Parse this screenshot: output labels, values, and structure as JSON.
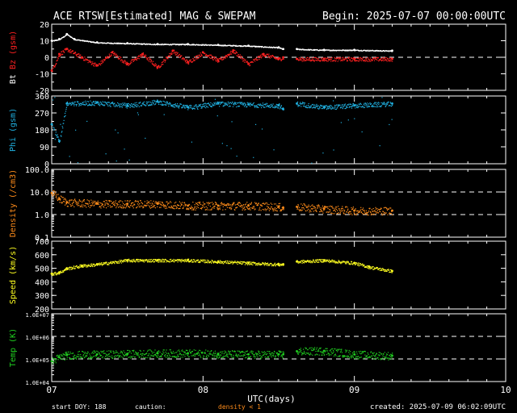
{
  "header": {
    "title": "ACE RTSW[Estimated] MAG & SWEPAM",
    "begin": "Begin: 2025-07-07 00:00:00UTC"
  },
  "footer": {
    "start_doy": "start DOY: 188",
    "caution": "caution:",
    "density_note": "density < 1",
    "created": "created: 2025-07-09 06:02:09UTC"
  },
  "colors": {
    "background": "#000000",
    "axes": "#ffffff",
    "bt": "#ffffff",
    "bz": "#ff2020",
    "phi": "#20b0e0",
    "density": "#ff8c1a",
    "speed": "#ffff20",
    "temp": "#20d020",
    "caution": "#ff8c1a"
  },
  "chart_data": {
    "type": "scatter",
    "xlabel": "UTC(days)",
    "x_range_days": [
      7,
      10
    ],
    "x_ticks": [
      7,
      8,
      9,
      10
    ],
    "x_tick_labels": [
      "07",
      "08",
      "09",
      "10"
    ],
    "data_end_day": 9.25,
    "gaps": [
      [
        8.53,
        8.62
      ]
    ],
    "panels": [
      {
        "id": "mag",
        "ylabel_parts": [
          {
            "text": "Bt",
            "color": "#ffffff"
          },
          {
            "text": "  ",
            "color": "#ffffff"
          },
          {
            "text": "Bz",
            "color": "#ff2020"
          },
          {
            "text": " (gsm)",
            "color": "#ff2020"
          }
        ],
        "scale": "linear",
        "ylim": [
          -20,
          20
        ],
        "ticks": [
          -20,
          -10,
          0,
          10,
          20
        ],
        "tick_labels": [
          "-20",
          "-10",
          "0",
          "10",
          "20"
        ],
        "dashed": [
          0
        ],
        "series": [
          {
            "name": "Bt",
            "color": "#ffffff",
            "x": [
              7.0,
              7.05,
              7.1,
              7.15,
              7.3,
              7.5,
              7.7,
              7.9,
              8.1,
              8.3,
              8.5,
              8.53,
              8.62,
              8.8,
              9.0,
              9.25
            ],
            "y": [
              10,
              11,
              14,
              11,
              9,
              8.5,
              8,
              8,
              7.5,
              7,
              6,
              5,
              5,
              4.5,
              4.5,
              4
            ]
          },
          {
            "name": "Bz",
            "color": "#ff2020",
            "x": [
              7.0,
              7.05,
              7.1,
              7.2,
              7.3,
              7.4,
              7.5,
              7.6,
              7.7,
              7.8,
              7.9,
              8.0,
              8.1,
              8.2,
              8.3,
              8.4,
              8.5,
              8.53,
              8.62,
              8.8,
              9.0,
              9.25
            ],
            "y": [
              -8,
              2,
              5,
              0,
              -5,
              3,
              -4,
              2,
              -6,
              4,
              -3,
              3,
              -2,
              4,
              -4,
              2,
              -1,
              0,
              -1,
              -1,
              -1,
              -1
            ]
          }
        ]
      },
      {
        "id": "phi",
        "ylabel_parts": [
          {
            "text": "Phi (gsm)",
            "color": "#20b0e0"
          }
        ],
        "scale": "linear",
        "ylim": [
          0,
          360
        ],
        "ticks": [
          0,
          90,
          180,
          270,
          360
        ],
        "tick_labels": [
          "0",
          "90",
          "180",
          "270",
          "360"
        ],
        "dashed": [],
        "series": [
          {
            "name": "Phi",
            "color": "#20b0e0",
            "x": [
              7.0,
              7.05,
              7.1,
              7.3,
              7.5,
              7.7,
              7.9,
              8.1,
              8.3,
              8.5,
              8.53,
              8.62,
              8.8,
              9.0,
              9.25
            ],
            "y": [
              210,
              120,
              320,
              325,
              310,
              330,
              300,
              320,
              315,
              310,
              290,
              320,
              300,
              310,
              320
            ]
          }
        ]
      },
      {
        "id": "density",
        "ylabel_parts": [
          {
            "text": "Density (/cm3)",
            "color": "#ff8c1a"
          }
        ],
        "scale": "log",
        "ylim": [
          0.1,
          100
        ],
        "ticks": [
          0.1,
          1,
          10,
          100
        ],
        "tick_labels": [
          "0.1",
          "1.0",
          "10.0",
          "100.0"
        ],
        "dashed": [
          1,
          10
        ],
        "series": [
          {
            "name": "Density",
            "color": "#ff8c1a",
            "x": [
              7.0,
              7.05,
              7.1,
              7.3,
              7.5,
              7.7,
              7.9,
              8.1,
              8.3,
              8.5,
              8.53,
              8.62,
              8.8,
              9.0,
              9.25
            ],
            "y": [
              9,
              5,
              3.5,
              3,
              3,
              3,
              2.5,
              2.5,
              2.5,
              2.2,
              2.0,
              2.2,
              1.8,
              1.5,
              1.5
            ]
          }
        ]
      },
      {
        "id": "speed",
        "ylabel_parts": [
          {
            "text": "Speed (km/s)",
            "color": "#ffff20"
          }
        ],
        "scale": "linear",
        "ylim": [
          200,
          700
        ],
        "ticks": [
          200,
          300,
          400,
          500,
          600,
          700
        ],
        "tick_labels": [
          "200",
          "300",
          "400",
          "500",
          "600",
          "700"
        ],
        "dashed": [],
        "series": [
          {
            "name": "Speed",
            "color": "#ffff20",
            "x": [
              7.0,
              7.05,
              7.1,
              7.2,
              7.3,
              7.5,
              7.7,
              7.9,
              8.1,
              8.3,
              8.5,
              8.53,
              8.62,
              8.8,
              9.0,
              9.1,
              9.25
            ],
            "y": [
              460,
              470,
              500,
              520,
              530,
              560,
              560,
              560,
              550,
              540,
              530,
              530,
              550,
              560,
              540,
              510,
              480
            ]
          }
        ]
      },
      {
        "id": "temp",
        "ylabel_parts": [
          {
            "text": "Temp (K)",
            "color": "#20d020"
          }
        ],
        "scale": "log",
        "ylim": [
          10000,
          10000000
        ],
        "ticks": [
          10000,
          100000,
          1000000,
          10000000
        ],
        "tick_labels": [
          "1.0E+04",
          "1.0E+05",
          "1.0E+06",
          "1.0E+07"
        ],
        "dashed": [
          100000,
          1000000
        ],
        "series": [
          {
            "name": "Temp",
            "color": "#20d020",
            "x": [
              7.0,
              7.05,
              7.1,
              7.3,
              7.5,
              7.7,
              7.9,
              8.1,
              8.3,
              8.5,
              8.53,
              8.62,
              8.8,
              9.0,
              9.25
            ],
            "y": [
              80000,
              120000,
              150000,
              160000,
              170000,
              180000,
              180000,
              170000,
              160000,
              160000,
              160000,
              220000,
              230000,
              160000,
              140000
            ]
          }
        ]
      }
    ]
  }
}
